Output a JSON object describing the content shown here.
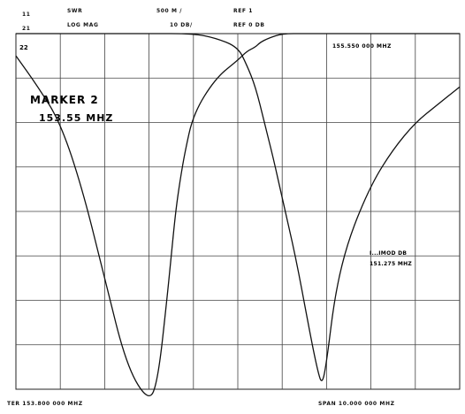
{
  "header": {
    "ch_line1": "11",
    "ch_line2": "21",
    "param_line1": "SWR",
    "param_line2": "LOG MAG",
    "scale_line1": "500 M /",
    "scale_line2": "10 DB/",
    "ref_line1": "REF 1",
    "ref_line2": "REF 0 DB"
  },
  "footer": {
    "center": "TER 153.800 000 MHZ",
    "span": "SPAN  10.000 000 MHZ"
  },
  "chart_data": {
    "type": "line",
    "grid": true,
    "x_divisions": 10,
    "y_divisions": 8,
    "ylabel_ref": "REF 0 DB",
    "annotations": {
      "corner_tag": "22",
      "marker_title": "MARKER 2",
      "marker_freq": "153.55 MHZ",
      "marker_readout_top": "155.550 000 MHZ",
      "marker_readout_right_1": "I...IMOD DB",
      "marker_readout_right_2": "151.275 MHZ"
    },
    "series": [
      {
        "x": [
          0,
          0.5,
          1.0,
          1.5,
          2.0,
          2.5,
          3.0,
          3.2,
          3.4,
          3.5,
          3.6,
          3.7,
          3.8,
          4.0,
          4.5,
          5.0,
          5.2,
          5.4,
          5.5,
          5.7,
          6.0,
          6.5,
          7.0,
          7.5,
          8.0,
          9.0,
          10.0
        ],
        "y": [
          -0.5,
          -1.2,
          -2.0,
          -3.5,
          -5.5,
          -7.5,
          -8.3,
          -7.8,
          -6.0,
          -5.0,
          -4.0,
          -3.3,
          -2.7,
          -1.8,
          -1.0,
          -0.6,
          -0.4,
          -0.3,
          -0.2,
          -0.1,
          0,
          0,
          0,
          0,
          0,
          0,
          0
        ]
      },
      {
        "x": [
          0,
          1.0,
          2.0,
          3.0,
          4.0,
          4.5,
          5.0,
          5.2,
          5.4,
          5.6,
          5.8,
          6.0,
          6.3,
          6.6,
          6.8,
          6.9,
          7.0,
          7.2,
          7.5,
          8.0,
          8.5,
          9.0,
          9.5,
          10.0
        ],
        "y": [
          0,
          0,
          0,
          0,
          0,
          -0.1,
          -0.3,
          -0.7,
          -1.2,
          -2.0,
          -2.8,
          -3.7,
          -5.0,
          -6.6,
          -7.6,
          -7.9,
          -7.4,
          -5.8,
          -4.6,
          -3.4,
          -2.6,
          -2.0,
          -1.6,
          -1.2
        ]
      }
    ]
  }
}
